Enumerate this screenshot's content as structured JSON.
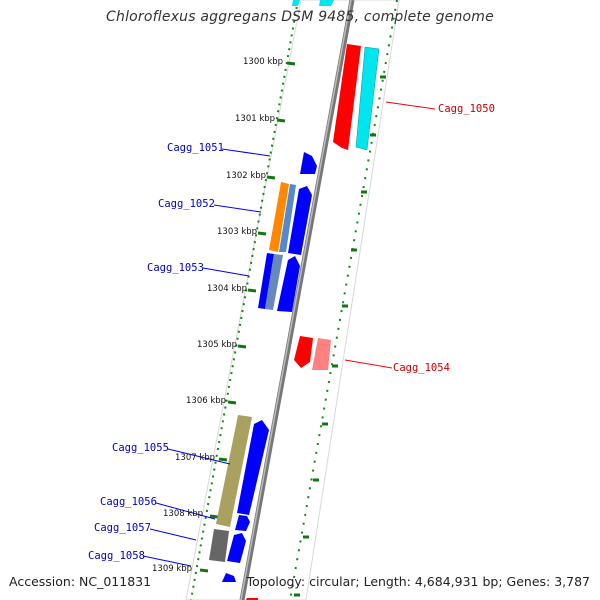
{
  "title": "Chloroflexus aggregans DSM 9485, complete genome",
  "accession_label": "Accession: NC_011831",
  "topology_label": "Topology: circular; Length: 4,684,931 bp; Genes: 3,787",
  "colors": {
    "forward": "#0000ff",
    "reverse": "#ff0000",
    "label_forward": "#0000cc",
    "label_reverse": "#cc0000",
    "axis": "#888888",
    "tick": "#007700"
  },
  "tick_labels": [
    "1300 kbp",
    "1301 kbp",
    "1302 kbp",
    "1303 kbp",
    "1304 kbp",
    "1305 kbp",
    "1306 kbp",
    "1307 kbp",
    "1308 kbp",
    "1309 kbp"
  ],
  "gene_labels": [
    {
      "text": "Cagg_1050",
      "strand": "reverse"
    },
    {
      "text": "Cagg_1051",
      "strand": "forward"
    },
    {
      "text": "Cagg_1052",
      "strand": "forward"
    },
    {
      "text": "Cagg_1053",
      "strand": "forward"
    },
    {
      "text": "Cagg_1054",
      "strand": "reverse"
    },
    {
      "text": "Cagg_1055",
      "strand": "forward"
    },
    {
      "text": "Cagg_1056",
      "strand": "forward"
    },
    {
      "text": "Cagg_1057",
      "strand": "forward"
    },
    {
      "text": "Cagg_1058",
      "strand": "forward"
    }
  ]
}
